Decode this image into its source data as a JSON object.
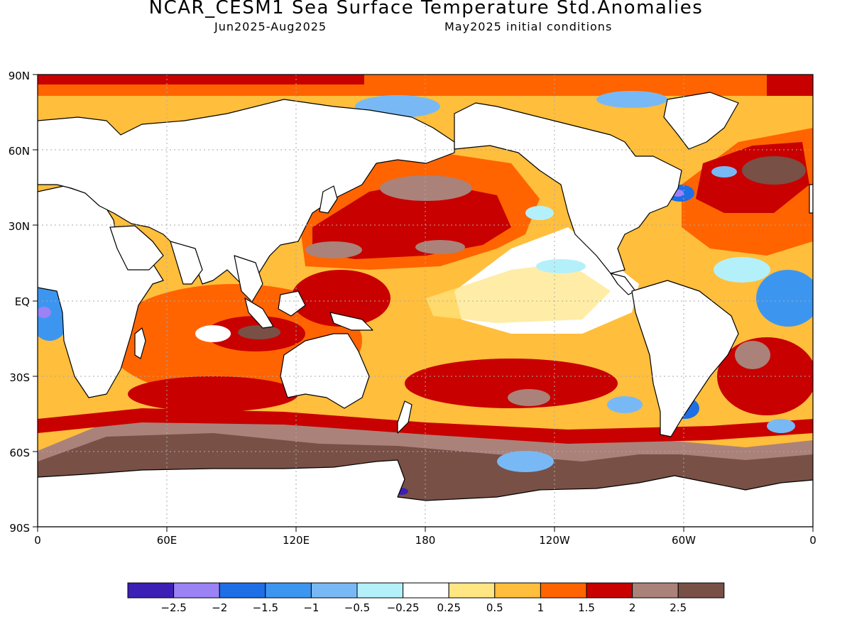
{
  "header": {
    "title": "NCAR_CESM1 Sea Surface Temperature Std.Anomalies",
    "period": "Jun2025-Aug2025",
    "init": "May2025 initial conditions"
  },
  "axes": {
    "lat_labels": [
      "90N",
      "60N",
      "30N",
      "EQ",
      "30S",
      "60S",
      "90S"
    ],
    "lon_labels": [
      "0",
      "60E",
      "120E",
      "180",
      "120W",
      "60W",
      "0"
    ]
  },
  "colorbar": {
    "labels": [
      "-2.5",
      "-2",
      "-1.5",
      "-1",
      "-0.5",
      "-0.25",
      "0.25",
      "0.5",
      "1",
      "1.5",
      "2",
      "2.5"
    ],
    "colors": [
      "#3c1fb4",
      "#9b82f5",
      "#1e6ee6",
      "#3c96f0",
      "#78b9f5",
      "#b4f0fa",
      "#ffffff",
      "#ffe682",
      "#ffbe3c",
      "#ff6400",
      "#c80000",
      "#aa827a",
      "#785046"
    ]
  },
  "theme": {
    "land": "#ffffff",
    "coast": "#000000",
    "grid": "#aaaaaa"
  }
}
